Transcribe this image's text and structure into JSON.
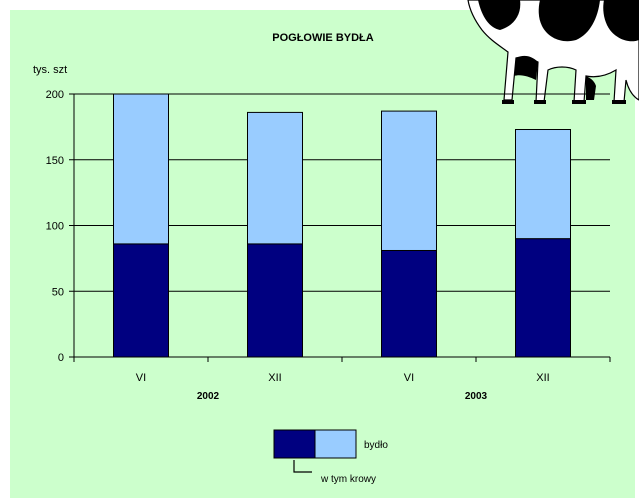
{
  "chart_data": {
    "type": "bar",
    "stacked": true,
    "title": "POGŁOWIE BYDŁA",
    "ylabel": "tys. szt",
    "ylim": [
      0,
      200
    ],
    "yticks": [
      0,
      50,
      100,
      150,
      200
    ],
    "categories": [
      "VI",
      "XII",
      "VI",
      "XII"
    ],
    "groups": [
      {
        "label": "2002",
        "categories": [
          0,
          1
        ]
      },
      {
        "label": "2003",
        "categories": [
          2,
          3
        ]
      }
    ],
    "totals": [
      200,
      186,
      187,
      173
    ],
    "series": [
      {
        "name": "w tym krowy",
        "values": [
          86,
          86,
          81,
          90
        ],
        "color": "#000080"
      },
      {
        "name": "bydło",
        "values": [
          114,
          100,
          106,
          83
        ],
        "color": "#99ccff"
      }
    ],
    "grid": true,
    "legend_position": "bottom"
  },
  "decoration": {
    "icon": "cow-icon"
  }
}
